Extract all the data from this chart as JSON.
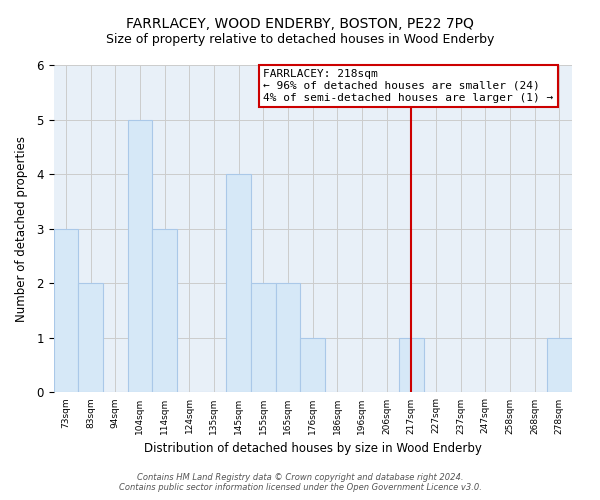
{
  "title": "FARRLACEY, WOOD ENDERBY, BOSTON, PE22 7PQ",
  "subtitle": "Size of property relative to detached houses in Wood Enderby",
  "xlabel": "Distribution of detached houses by size in Wood Enderby",
  "ylabel": "Number of detached properties",
  "bar_labels": [
    "73sqm",
    "83sqm",
    "94sqm",
    "104sqm",
    "114sqm",
    "124sqm",
    "135sqm",
    "145sqm",
    "155sqm",
    "165sqm",
    "176sqm",
    "186sqm",
    "196sqm",
    "206sqm",
    "217sqm",
    "227sqm",
    "237sqm",
    "247sqm",
    "258sqm",
    "268sqm",
    "278sqm"
  ],
  "bar_values": [
    3,
    2,
    0,
    5,
    3,
    0,
    0,
    4,
    2,
    2,
    1,
    0,
    0,
    0,
    1,
    0,
    0,
    0,
    0,
    0,
    1
  ],
  "bar_color": "#d6e8f7",
  "bar_edgecolor": "#aac8e8",
  "vline_x": 14,
  "vline_color": "#cc0000",
  "ylim": [
    0,
    6
  ],
  "yticks": [
    0,
    1,
    2,
    3,
    4,
    5,
    6
  ],
  "grid_color": "#cccccc",
  "annotation_title": "FARRLACEY: 218sqm",
  "annotation_line1": "← 96% of detached houses are smaller (24)",
  "annotation_line2": "4% of semi-detached houses are larger (1) →",
  "annotation_box_edgecolor": "#cc0000",
  "footer_line1": "Contains HM Land Registry data © Crown copyright and database right 2024.",
  "footer_line2": "Contains public sector information licensed under the Open Government Licence v3.0.",
  "plot_bg_color": "#e8f0f8",
  "fig_bg_color": "#ffffff"
}
